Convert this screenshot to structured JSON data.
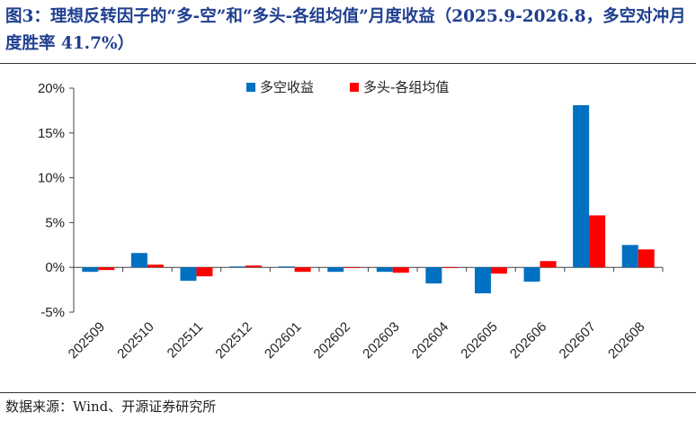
{
  "title": "图3：理想反转因子的“多-空”和“多头-各组均值”月度收益（2025.9-2026.8，多空对冲月度胜率 41.7%）",
  "source": "数据来源：Wind、开源证券研究所",
  "chart_data": {
    "type": "bar",
    "categories": [
      "202509",
      "202510",
      "202511",
      "202512",
      "202601",
      "202602",
      "202603",
      "202604",
      "202605",
      "202606",
      "202607",
      "202608"
    ],
    "series": [
      {
        "name": "多空收益",
        "color": "#0070c0",
        "values": [
          -0.5,
          1.6,
          -1.5,
          0.1,
          0.1,
          -0.5,
          -0.5,
          -1.8,
          -2.9,
          -1.6,
          18.1,
          2.5
        ]
      },
      {
        "name": "多头-各组均值",
        "color": "#ff0000",
        "values": [
          -0.3,
          0.3,
          -1.0,
          0.2,
          -0.5,
          0.0,
          -0.6,
          0.0,
          -0.7,
          0.7,
          5.8,
          2.0
        ]
      }
    ],
    "ylim": [
      -5,
      20
    ],
    "yticks": [
      -5,
      0,
      5,
      10,
      15,
      20
    ],
    "ytick_labels": [
      "-5%",
      "0%",
      "5%",
      "10%",
      "15%",
      "20%"
    ],
    "legend_position": "top",
    "grid": false
  }
}
